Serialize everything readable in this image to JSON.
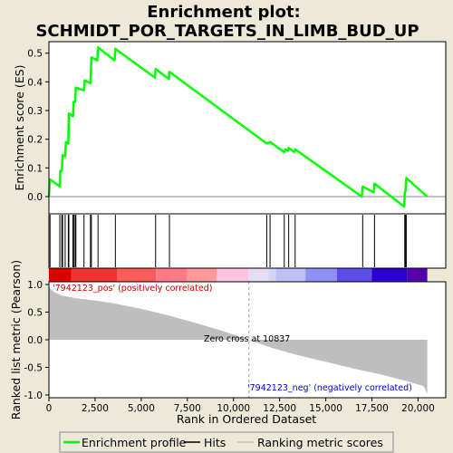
{
  "chart_data": [
    {
      "type": "line",
      "panel": "enrichment",
      "title": "Enrichment plot: SCHMIDT_POR_TARGETS_IN_LIMB_BUD_UP",
      "title_lines": [
        "Enrichment plot:",
        "SCHMIDT_POR_TARGETS_IN_LIMB_BUD_UP"
      ],
      "ylabel": "Enrichment score (ES)",
      "ylim": [
        -0.06,
        0.54
      ],
      "yticks": [
        0.0,
        0.1,
        0.2,
        0.3,
        0.4,
        0.5
      ],
      "ytick_labels": [
        "0.0",
        "0.1",
        "0.2",
        "0.3",
        "0.4",
        "0.5"
      ],
      "xlim": [
        0,
        21500
      ],
      "grid": false,
      "series": [
        {
          "name": "Enrichment profile",
          "color": "#00ff00",
          "points": [
            [
              0,
              0.0
            ],
            [
              60,
              0.06
            ],
            [
              590,
              0.035
            ],
            [
              620,
              0.09
            ],
            [
              700,
              0.09
            ],
            [
              740,
              0.145
            ],
            [
              880,
              0.14
            ],
            [
              920,
              0.19
            ],
            [
              1050,
              0.185
            ],
            [
              1080,
              0.29
            ],
            [
              1300,
              0.28
            ],
            [
              1340,
              0.33
            ],
            [
              1420,
              0.33
            ],
            [
              1460,
              0.38
            ],
            [
              1900,
              0.37
            ],
            [
              1940,
              0.405
            ],
            [
              2250,
              0.395
            ],
            [
              2280,
              0.44
            ],
            [
              2300,
              0.485
            ],
            [
              2620,
              0.475
            ],
            [
              2660,
              0.52
            ],
            [
              3560,
              0.475
            ],
            [
              3600,
              0.515
            ],
            [
              5740,
              0.415
            ],
            [
              5780,
              0.445
            ],
            [
              6500,
              0.41
            ],
            [
              6530,
              0.435
            ],
            [
              11800,
              0.185
            ],
            [
              11980,
              0.19
            ],
            [
              12750,
              0.155
            ],
            [
              12800,
              0.165
            ],
            [
              12950,
              0.16
            ],
            [
              12990,
              0.17
            ],
            [
              13300,
              0.155
            ],
            [
              13340,
              0.165
            ],
            [
              16950,
              0.0
            ],
            [
              17000,
              0.035
            ],
            [
              17600,
              0.015
            ],
            [
              17640,
              0.045
            ],
            [
              19250,
              -0.035
            ],
            [
              19280,
              0.015
            ],
            [
              19320,
              0.02
            ],
            [
              19360,
              0.065
            ],
            [
              20500,
              0.0
            ]
          ]
        }
      ],
      "hits": [
        60,
        590,
        700,
        740,
        880,
        1050,
        1080,
        1300,
        1340,
        1420,
        1460,
        1900,
        2250,
        2300,
        2660,
        3600,
        5780,
        6530,
        11800,
        11980,
        12750,
        12990,
        13340,
        17000,
        17640,
        19280,
        19320,
        19360
      ]
    },
    {
      "type": "area",
      "panel": "ranked-metric",
      "ylabel": "Ranked list metric (Pearson)",
      "xlabel": "Rank in Ordered Dataset",
      "xlim": [
        0,
        21500
      ],
      "xticks": [
        0,
        2500,
        5000,
        7500,
        10000,
        12500,
        15000,
        17500,
        20000
      ],
      "xtick_labels": [
        "0",
        "2,500",
        "5,000",
        "7,500",
        "10,000",
        "12,500",
        "15,000",
        "17,500",
        "20,000"
      ],
      "ylim": [
        -1.05,
        1.05
      ],
      "yticks": [
        1.0,
        0.5,
        0.0,
        -0.5,
        -1.0
      ],
      "ytick_labels": [
        "1.0",
        "0.5",
        "0.0",
        "-0.5",
        "-1.0"
      ],
      "fill_color": "#bebebe",
      "x": [
        0,
        50,
        300,
        700,
        1500,
        2500,
        3500,
        5000,
        6500,
        8000,
        9500,
        10837,
        12000,
        13500,
        15000,
        16500,
        18000,
        19500,
        20300,
        20500
      ],
      "values": [
        1.0,
        0.93,
        0.86,
        0.8,
        0.75,
        0.71,
        0.66,
        0.56,
        0.44,
        0.3,
        0.15,
        0.0,
        -0.14,
        -0.28,
        -0.4,
        -0.52,
        -0.63,
        -0.76,
        -0.84,
        -0.98
      ],
      "zero_cross": 10837,
      "annotations": {
        "pos": "'7942123_pos' (positively correlated)",
        "neg": "'7942123_neg' (negatively correlated)",
        "zero": "Zero cross at 10837"
      }
    }
  ],
  "gradient_bar": [
    {
      "from": 0,
      "to": 1200,
      "color": "#dd0000"
    },
    {
      "from": 1200,
      "to": 3700,
      "color": "#ee3333"
    },
    {
      "from": 3700,
      "to": 5800,
      "color": "#fa5b5b"
    },
    {
      "from": 5800,
      "to": 7500,
      "color": "#ff7a86"
    },
    {
      "from": 7500,
      "to": 9100,
      "color": "#ff9a9a"
    },
    {
      "from": 9100,
      "to": 10800,
      "color": "#ffc4de"
    },
    {
      "from": 10800,
      "to": 11900,
      "color": "#e6dcf4"
    },
    {
      "from": 11900,
      "to": 12300,
      "color": "#d4d4f5"
    },
    {
      "from": 12300,
      "to": 13900,
      "color": "#bfbff5"
    },
    {
      "from": 13900,
      "to": 15600,
      "color": "#8f8ff6"
    },
    {
      "from": 15600,
      "to": 17500,
      "color": "#5c4de8"
    },
    {
      "from": 17500,
      "to": 19400,
      "color": "#2a00d0"
    },
    {
      "from": 19400,
      "to": 20500,
      "color": "#5500a8"
    }
  ],
  "legend": {
    "items": [
      {
        "label": "Enrichment profile",
        "color": "#00ff00"
      },
      {
        "label": "Hits",
        "color": "#000000"
      },
      {
        "label": "Ranking metric scores",
        "color": "#bebebe"
      }
    ]
  }
}
